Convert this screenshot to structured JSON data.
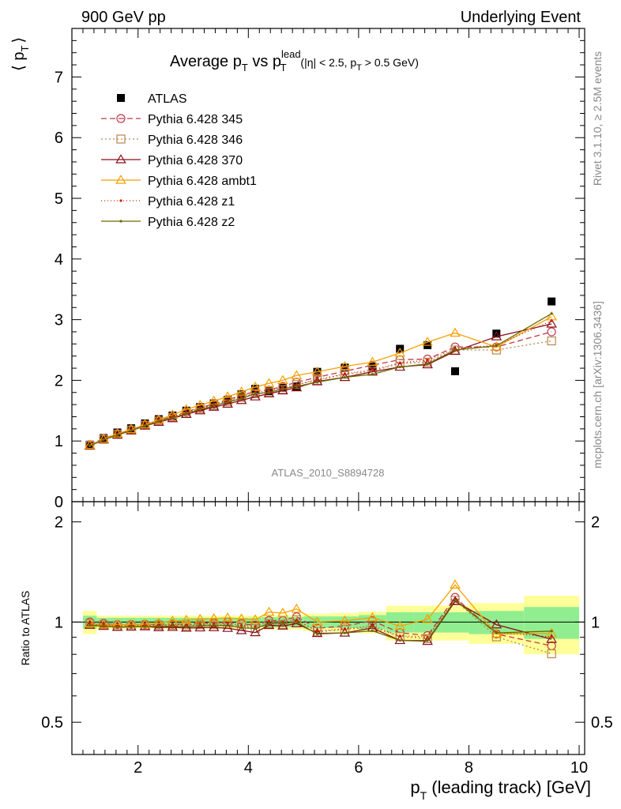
{
  "header": {
    "left": "900 GeV pp",
    "right": "Underlying Event"
  },
  "side_labels": {
    "rivet": "Rivet 3.1.10, ≥ 2.5M events",
    "mcplots": "mcplots.cern.ch [arXiv:1306.3436]"
  },
  "analysis_tag": "ATLAS_2010_S8894728",
  "colors": {
    "atlas": "#000000",
    "p345": "#c0394b",
    "p346": "#b8864b",
    "p370": "#8b0f1a",
    "ambt1": "#f5a000",
    "z1": "#cc2200",
    "z2": "#6b6b00",
    "band_inner": "#90ee90",
    "band_outer": "#ffff99"
  },
  "chart_data": {
    "type": "line",
    "title": "Average p_T vs p_T^lead (|η| < 2.5, p_T > 0.5 GeV)",
    "title_parts": {
      "a": "Average p",
      "a_sub": "T",
      "b": " vs p",
      "b_sup": "lead",
      "b_sub": "T",
      "c": " (|η| < 2.5, p",
      "c_sub": "T",
      "d": " > 0.5 GeV)"
    },
    "ylabel": "⟨ p_T ⟩",
    "ylabel_parts": {
      "main": "⟨ p",
      "sub": "T",
      "end": "⟩"
    },
    "ratio_ylabel": "Ratio to ATLAS",
    "xlabel": "p_T (leading track) [GeV]",
    "xlabel_parts": {
      "main": "p",
      "sub": "T",
      "rest": " (leading track) [GeV]"
    },
    "xlim": [
      0.8,
      10.1
    ],
    "ylim": [
      0,
      7.8
    ],
    "ratio_ylim": [
      0.4,
      2.3
    ],
    "xticks": [
      2,
      4,
      6,
      8,
      10
    ],
    "yticks": [
      0,
      1,
      2,
      3,
      4,
      5,
      6,
      7
    ],
    "ratio_yticks": [
      0.5,
      1,
      2
    ],
    "x": [
      1.125,
      1.375,
      1.625,
      1.875,
      2.125,
      2.375,
      2.625,
      2.875,
      3.125,
      3.375,
      3.625,
      3.875,
      4.125,
      4.375,
      4.625,
      4.875,
      5.25,
      5.75,
      6.25,
      6.75,
      7.25,
      7.75,
      8.5,
      9.5
    ],
    "bins": [
      1.0,
      1.25,
      1.5,
      1.75,
      2.0,
      2.25,
      2.5,
      2.75,
      3.0,
      3.25,
      3.5,
      3.75,
      4.0,
      4.25,
      4.5,
      4.75,
      5.0,
      5.5,
      6.0,
      6.5,
      7.0,
      7.5,
      8.0,
      9.0,
      10.0
    ],
    "band_inner": [
      0.045,
      0.03,
      0.03,
      0.03,
      0.03,
      0.03,
      0.03,
      0.03,
      0.03,
      0.03,
      0.03,
      0.03,
      0.03,
      0.035,
      0.035,
      0.035,
      0.04,
      0.04,
      0.05,
      0.07,
      0.07,
      0.07,
      0.08,
      0.11
    ],
    "band_outer": [
      0.08,
      0.045,
      0.045,
      0.045,
      0.045,
      0.045,
      0.045,
      0.045,
      0.045,
      0.045,
      0.045,
      0.045,
      0.045,
      0.05,
      0.05,
      0.05,
      0.06,
      0.065,
      0.075,
      0.12,
      0.12,
      0.12,
      0.14,
      0.2
    ],
    "series": [
      {
        "name": "ATLAS",
        "key": "atlas",
        "marker": "square-filled",
        "dash": "none",
        "values": [
          0.94,
          1.05,
          1.14,
          1.21,
          1.29,
          1.36,
          1.42,
          1.5,
          1.56,
          1.62,
          1.68,
          1.77,
          1.86,
          1.82,
          1.88,
          1.9,
          2.14,
          2.21,
          2.23,
          2.52,
          2.58,
          2.15,
          2.77,
          3.3
        ]
      },
      {
        "name": "Pythia 6.428 345",
        "key": "p345",
        "marker": "circle-open",
        "dash": "7,4",
        "values": [
          0.94,
          1.04,
          1.12,
          1.19,
          1.27,
          1.34,
          1.4,
          1.48,
          1.55,
          1.61,
          1.68,
          1.75,
          1.82,
          1.84,
          1.9,
          1.97,
          2.05,
          2.15,
          2.25,
          2.34,
          2.35,
          2.55,
          2.55,
          2.8
        ]
      },
      {
        "name": "Pythia 6.428 346",
        "key": "p346",
        "marker": "square-open",
        "dash": "2,3",
        "values": [
          0.93,
          1.03,
          1.11,
          1.18,
          1.26,
          1.33,
          1.39,
          1.46,
          1.53,
          1.59,
          1.65,
          1.72,
          1.78,
          1.8,
          1.85,
          1.93,
          2.0,
          2.1,
          2.15,
          2.28,
          2.3,
          2.5,
          2.5,
          2.65
        ]
      },
      {
        "name": "Pythia 6.428 370",
        "key": "p370",
        "marker": "triangle-open",
        "dash": "none",
        "values": [
          0.92,
          1.02,
          1.1,
          1.17,
          1.25,
          1.31,
          1.37,
          1.44,
          1.5,
          1.56,
          1.61,
          1.67,
          1.73,
          1.78,
          1.83,
          1.88,
          1.98,
          2.05,
          2.14,
          2.22,
          2.26,
          2.48,
          2.72,
          2.93
        ]
      },
      {
        "name": "Pythia 6.428 ambt1",
        "key": "ambt1",
        "marker": "triangle-open",
        "dash": "none",
        "values": [
          0.93,
          1.03,
          1.12,
          1.19,
          1.27,
          1.35,
          1.43,
          1.52,
          1.59,
          1.66,
          1.73,
          1.81,
          1.89,
          1.95,
          2.0,
          2.08,
          2.14,
          2.23,
          2.3,
          2.45,
          2.63,
          2.78,
          2.55,
          3.05
        ]
      },
      {
        "name": "Pythia 6.428 z1",
        "key": "z1",
        "marker": "dot",
        "dash": "1,3",
        "values": [
          0.93,
          1.03,
          1.11,
          1.18,
          1.26,
          1.33,
          1.4,
          1.47,
          1.54,
          1.6,
          1.67,
          1.73,
          1.8,
          1.83,
          1.88,
          1.93,
          2.01,
          2.11,
          2.17,
          2.29,
          2.33,
          2.52,
          2.58,
          2.98
        ]
      },
      {
        "name": "Pythia 6.428 z2",
        "key": "z2",
        "marker": "dot",
        "dash": "none",
        "values": [
          0.92,
          1.02,
          1.1,
          1.17,
          1.25,
          1.32,
          1.38,
          1.45,
          1.52,
          1.58,
          1.64,
          1.7,
          1.78,
          1.8,
          1.86,
          1.9,
          1.97,
          2.05,
          2.1,
          2.22,
          2.27,
          2.5,
          2.57,
          3.1
        ]
      }
    ]
  }
}
